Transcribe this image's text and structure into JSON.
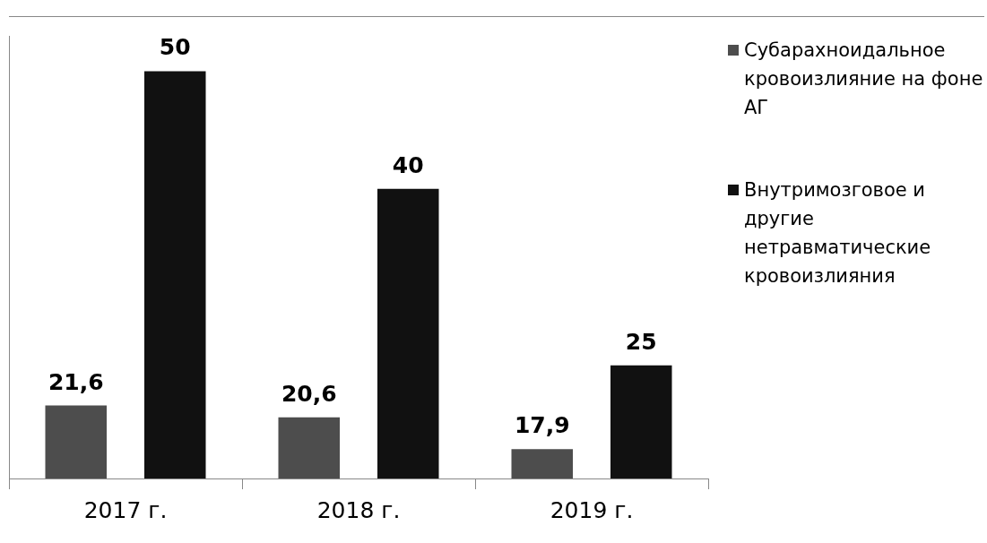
{
  "chart_data": {
    "type": "bar",
    "categories": [
      "2017 г.",
      "2018 г.",
      "2019 г."
    ],
    "series": [
      {
        "name": "Субарахноидальное кровоизлияние на фоне АГ",
        "color": "#4d4d4d",
        "values": [
          21.6,
          20.6,
          17.9
        ],
        "value_labels": [
          "21,6",
          "20,6",
          "17,9"
        ]
      },
      {
        "name": "Внутримозговое и другие нетравматические кровоизлияния",
        "color": "#111111",
        "values": [
          50,
          40,
          25
        ],
        "value_labels": [
          "50",
          "40",
          "25"
        ]
      }
    ],
    "ylim": [
      15.4,
      53
    ],
    "tick_labels": "x",
    "grid": false,
    "legend": "right"
  }
}
